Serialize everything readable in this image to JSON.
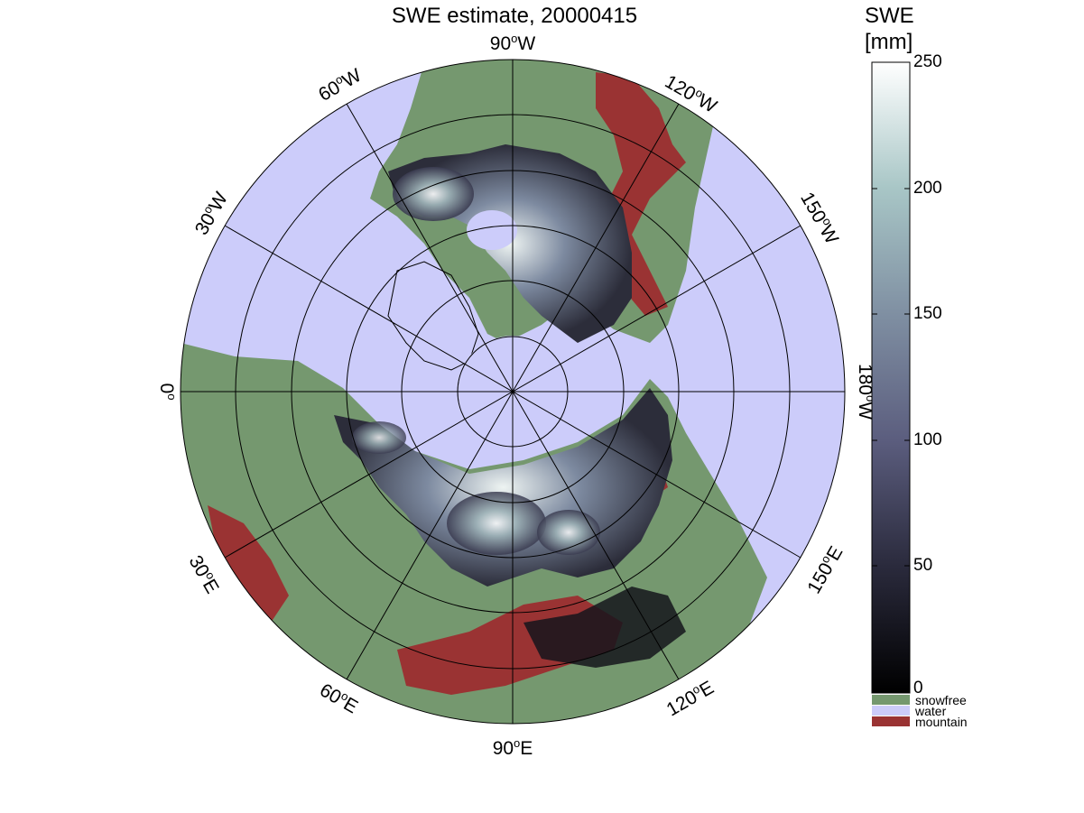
{
  "figure": {
    "title": "SWE estimate, 20000415"
  },
  "colorbar": {
    "title_line1": "SWE",
    "title_line2": "[mm]",
    "ticks": [
      "250",
      "200",
      "150",
      "100",
      "50",
      "0"
    ],
    "categories": [
      {
        "label": "snowfree",
        "color": "#75986f"
      },
      {
        "label": "water",
        "color": "#ccccfa"
      },
      {
        "label": "mountain",
        "color": "#9a3333"
      }
    ]
  },
  "map": {
    "projection": "north polar stereographic",
    "water_color": "#ccccfa",
    "land_color": "#75986f",
    "mountain_color": "#9a3333",
    "longitude_labels": [
      {
        "deg": "90",
        "hemi": "W"
      },
      {
        "deg": "120",
        "hemi": "W"
      },
      {
        "deg": "150",
        "hemi": "W"
      },
      {
        "deg": "180",
        "hemi": "W"
      },
      {
        "deg": "150",
        "hemi": "E"
      },
      {
        "deg": "120",
        "hemi": "E"
      },
      {
        "deg": "90",
        "hemi": "E"
      },
      {
        "deg": "60",
        "hemi": "E"
      },
      {
        "deg": "30",
        "hemi": "E"
      },
      {
        "deg": "0",
        "hemi": ""
      },
      {
        "deg": "30",
        "hemi": "W"
      },
      {
        "deg": "60",
        "hemi": "W"
      }
    ]
  }
}
